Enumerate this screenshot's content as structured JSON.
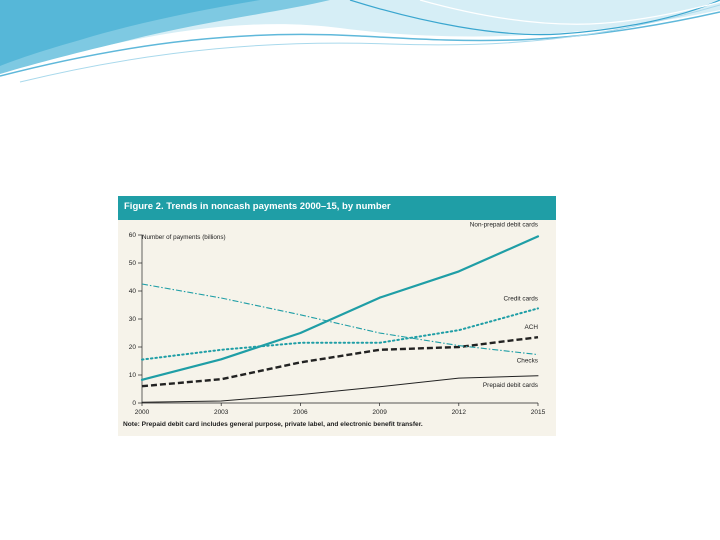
{
  "figure": {
    "title": "Figure 2. Trends in noncash payments 2000–15, by number",
    "note": "Note: Prepaid debit card includes general purpose, private label, and electronic benefit transfer."
  },
  "colors": {
    "header_bg": "#1f9ea6",
    "figure_bg": "#f6f3ea",
    "teal": "#1f9ea6",
    "black": "#222222"
  },
  "chart_data": {
    "type": "line",
    "title": "Figure 2. Trends in noncash payments 2000–15, by number",
    "ylabel": "Number of payments (billions)",
    "xlabel": "",
    "x": [
      2000,
      2003,
      2006,
      2009,
      2012,
      2015
    ],
    "x_ticks": [
      "2000",
      "2003",
      "2006",
      "2009",
      "2012",
      "2015"
    ],
    "y_ticks": [
      "0",
      "10",
      "20",
      "30",
      "40",
      "50",
      "60"
    ],
    "xlim": [
      2000,
      2015
    ],
    "ylim": [
      0,
      60
    ],
    "series": [
      {
        "name": "Non-prepaid debit cards",
        "style": "solid-thick",
        "color": "#1f9ea6",
        "values": [
          8.3,
          15.6,
          25.0,
          37.6,
          47.0,
          59.5
        ]
      },
      {
        "name": "Credit cards",
        "style": "dotted",
        "color": "#1f9ea6",
        "values": [
          15.5,
          19.0,
          21.5,
          21.5,
          26.0,
          33.8
        ]
      },
      {
        "name": "ACH",
        "style": "dashed-thick",
        "color": "#222222",
        "values": [
          6.0,
          8.5,
          14.5,
          19.0,
          20.0,
          23.5
        ]
      },
      {
        "name": "Checks",
        "style": "dash-dot",
        "color": "#1f9ea6",
        "values": [
          42.5,
          37.5,
          31.5,
          25.0,
          20.5,
          17.3
        ]
      },
      {
        "name": "Prepaid debit cards",
        "style": "solid-thin",
        "color": "#222222",
        "values": [
          0.3,
          0.7,
          3.0,
          5.8,
          8.9,
          9.7
        ]
      }
    ]
  }
}
